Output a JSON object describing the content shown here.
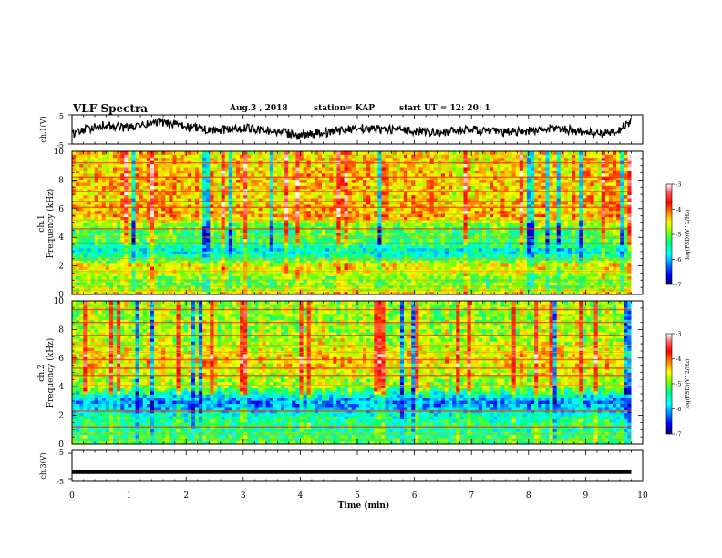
{
  "header": {
    "title": "VLF Spectra",
    "date": "Aug.3 , 2018",
    "station": "station= KAP",
    "start": "start UT = 12: 20: 1"
  },
  "colors": {
    "colormap": [
      "#000080",
      "#0000ff",
      "#0080ff",
      "#00ffff",
      "#00ff80",
      "#80ff00",
      "#ffff00",
      "#ff8000",
      "#ff0000",
      "#ff6060",
      "#ffffff"
    ],
    "trace": "#000000"
  },
  "chart_data": [
    {
      "type": "line",
      "panel": "ch1-waveform",
      "ylabel": "ch.1(V)",
      "ylim": [
        -5,
        5
      ],
      "ytick_labels": [
        "5",
        "-5"
      ],
      "xlim": [
        0,
        10
      ],
      "x": [
        0,
        0.5,
        1,
        1.5,
        2,
        2.5,
        3,
        3.5,
        4,
        4.5,
        5,
        5.5,
        6,
        6.5,
        7,
        7.5,
        8,
        8.5,
        9,
        9.5,
        9.8
      ],
      "y": [
        -1.5,
        1.5,
        0.5,
        2.5,
        1,
        -0.5,
        0.5,
        -0.5,
        -2,
        -1,
        0.5,
        0,
        -0.5,
        -1,
        0,
        -1,
        -0.5,
        0.5,
        -1,
        -1.5,
        3
      ]
    },
    {
      "type": "heatmap",
      "panel": "ch1-spectrogram",
      "ylabel": "Frequency (kHz)",
      "channel_label": "ch.1",
      "ylim": [
        0,
        10
      ],
      "ytick_labels": [
        "0",
        "2",
        "4",
        "6",
        "8",
        "10"
      ],
      "xlim": [
        0,
        9.8
      ],
      "colorbar": {
        "label": "log(PSD)(V^2/Hz)",
        "range": [
          -7,
          -3
        ],
        "tick_labels": [
          "-3",
          "-4",
          "-5",
          "-6",
          "-7"
        ]
      },
      "mean_level_by_freq": [
        {
          "f": 0,
          "v": -4.4
        },
        {
          "f": 0.5,
          "v": -5.0
        },
        {
          "f": 1,
          "v": -5.1
        },
        {
          "f": 1.5,
          "v": -4.8
        },
        {
          "f": 2,
          "v": -4.5
        },
        {
          "f": 2.5,
          "v": -5.3
        },
        {
          "f": 3,
          "v": -5.8
        },
        {
          "f": 3.5,
          "v": -5.4
        },
        {
          "f": 4,
          "v": -5.2
        },
        {
          "f": 4.5,
          "v": -5.2
        },
        {
          "f": 5,
          "v": -4.9
        },
        {
          "f": 5.5,
          "v": -4.3
        },
        {
          "f": 6,
          "v": -4.4
        },
        {
          "f": 7,
          "v": -4.5
        },
        {
          "f": 8,
          "v": -4.4
        },
        {
          "f": 9,
          "v": -4.5
        },
        {
          "f": 10,
          "v": -4.5
        }
      ]
    },
    {
      "type": "heatmap",
      "panel": "ch2-spectrogram",
      "ylabel": "Frequency (kHz)",
      "channel_label": "ch.2",
      "ylim": [
        0,
        10
      ],
      "ytick_labels": [
        "0",
        "2",
        "4",
        "6",
        "8",
        "10"
      ],
      "xlim": [
        0,
        9.8
      ],
      "colorbar": {
        "label": "log(PSD)(V^2/Hz)",
        "range": [
          -7,
          -3
        ],
        "tick_labels": [
          "-3",
          "-4",
          "-5",
          "-6",
          "-7"
        ]
      },
      "mean_level_by_freq": [
        {
          "f": 0,
          "v": -5.2
        },
        {
          "f": 0.5,
          "v": -5.3
        },
        {
          "f": 1,
          "v": -5.5
        },
        {
          "f": 1.5,
          "v": -5.4
        },
        {
          "f": 2,
          "v": -5.6
        },
        {
          "f": 2.5,
          "v": -6.0
        },
        {
          "f": 3,
          "v": -6.2
        },
        {
          "f": 3.5,
          "v": -5.6
        },
        {
          "f": 4,
          "v": -4.9
        },
        {
          "f": 4.5,
          "v": -4.9
        },
        {
          "f": 5,
          "v": -4.7
        },
        {
          "f": 5.5,
          "v": -4.6
        },
        {
          "f": 6,
          "v": -4.5
        },
        {
          "f": 7,
          "v": -4.8
        },
        {
          "f": 8,
          "v": -4.9
        },
        {
          "f": 9,
          "v": -4.9
        },
        {
          "f": 10,
          "v": -4.9
        }
      ]
    },
    {
      "type": "line",
      "panel": "ch3-waveform",
      "ylabel": "ch.3(V)",
      "ylim": [
        -5,
        5
      ],
      "ytick_labels": [
        "5",
        "-5"
      ],
      "xlim": [
        0,
        10
      ],
      "x": [
        0,
        9.8
      ],
      "y": [
        -2,
        -2
      ]
    }
  ],
  "xaxis": {
    "label": "Time (min)",
    "range": [
      0,
      10
    ],
    "tick_labels": [
      "0",
      "1",
      "2",
      "3",
      "4",
      "5",
      "6",
      "7",
      "8",
      "9",
      "10"
    ]
  }
}
